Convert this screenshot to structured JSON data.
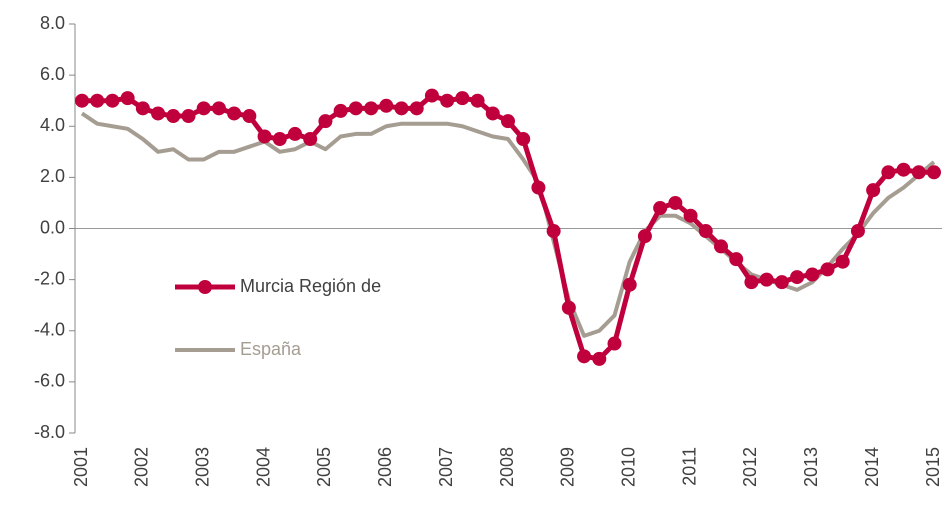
{
  "chart_data": {
    "type": "line",
    "x": [
      2001,
      2001.25,
      2001.5,
      2001.75,
      2002,
      2002.25,
      2002.5,
      2002.75,
      2003,
      2003.25,
      2003.5,
      2003.75,
      2004,
      2004.25,
      2004.5,
      2004.75,
      2005,
      2005.25,
      2005.5,
      2005.75,
      2006,
      2006.25,
      2006.5,
      2006.75,
      2007,
      2007.25,
      2007.5,
      2007.75,
      2008,
      2008.25,
      2008.5,
      2008.75,
      2009,
      2009.25,
      2009.5,
      2009.75,
      2010,
      2010.25,
      2010.5,
      2010.75,
      2011,
      2011.25,
      2011.5,
      2011.75,
      2012,
      2012.25,
      2012.5,
      2012.75,
      2013,
      2013.25,
      2013.5,
      2013.75,
      2014,
      2014.25,
      2014.5,
      2014.75,
      2015
    ],
    "series": [
      {
        "name": "Murcia Región de",
        "color": "#c0003c",
        "markers": true,
        "values": [
          5.0,
          5.0,
          5.0,
          5.1,
          4.7,
          4.5,
          4.4,
          4.4,
          4.7,
          4.7,
          4.5,
          4.4,
          3.6,
          3.5,
          3.7,
          3.5,
          4.2,
          4.6,
          4.7,
          4.7,
          4.8,
          4.7,
          4.7,
          5.2,
          5.0,
          5.1,
          5.0,
          4.5,
          4.2,
          3.5,
          1.6,
          -0.1,
          -3.1,
          -5.0,
          -5.1,
          -4.5,
          -2.2,
          -0.3,
          0.8,
          1.0,
          0.5,
          -0.1,
          -0.7,
          -1.2,
          -2.1,
          -2.0,
          -2.1,
          -1.9,
          -1.8,
          -1.6,
          -1.3,
          -0.1,
          1.5,
          2.2,
          2.3,
          2.2,
          2.2
        ]
      },
      {
        "name": "España",
        "color": "#a69d92",
        "markers": false,
        "values": [
          4.5,
          4.1,
          4.0,
          3.9,
          3.5,
          3.0,
          3.1,
          2.7,
          2.7,
          3.0,
          3.0,
          3.2,
          3.4,
          3.0,
          3.1,
          3.4,
          3.1,
          3.6,
          3.7,
          3.7,
          4.0,
          4.1,
          4.1,
          4.1,
          4.1,
          4.0,
          3.8,
          3.6,
          3.5,
          2.7,
          1.8,
          -0.5,
          -2.8,
          -4.2,
          -4.0,
          -3.4,
          -1.3,
          -0.1,
          0.5,
          0.5,
          0.2,
          -0.3,
          -0.8,
          -1.3,
          -1.8,
          -2.0,
          -2.2,
          -2.4,
          -2.1,
          -1.5,
          -0.8,
          -0.2,
          0.6,
          1.2,
          1.6,
          2.1,
          2.6
        ]
      }
    ],
    "xlim": [
      2001,
      2015
    ],
    "xticks": [
      2001,
      2002,
      2003,
      2004,
      2005,
      2006,
      2007,
      2008,
      2009,
      2010,
      2011,
      2012,
      2013,
      2014,
      2015
    ],
    "ylim": [
      -8,
      8
    ],
    "yticks": [
      {
        "value": -8,
        "label": "-8.0"
      },
      {
        "value": -6,
        "label": "-6.0"
      },
      {
        "value": -4,
        "label": "-4.0"
      },
      {
        "value": -2,
        "label": "-2.0"
      },
      {
        "value": 0,
        "label": "0.0"
      },
      {
        "value": 2,
        "label": "2.0"
      },
      {
        "value": 4,
        "label": "4.0"
      },
      {
        "value": 6,
        "label": "6.0"
      },
      {
        "value": 8,
        "label": "8.0"
      }
    ],
    "grid": false,
    "legend": "left"
  }
}
